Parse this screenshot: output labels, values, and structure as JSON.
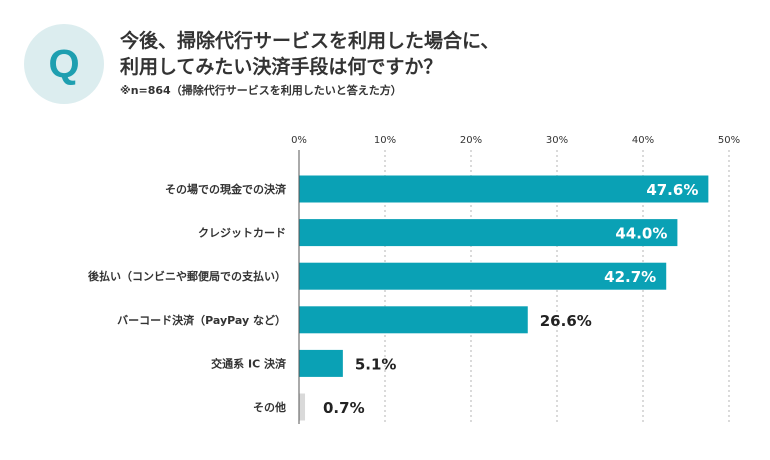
{
  "header": {
    "badge": "Q",
    "title_line1": "今後、掃除代行サービスを利用した場合に、",
    "title_line2": "利用してみたい決済手段は何ですか？",
    "note": "※n=864（掃除代行サービスを利用したいと答えた方）"
  },
  "colors": {
    "bar": "#0aa1b5",
    "bar_other": "#d9d9d9",
    "badge_bg": "#dcedef",
    "badge_text": "#1e9fb0"
  },
  "chart_data": {
    "type": "bar",
    "orientation": "horizontal",
    "categories": [
      "その場での現金での決済",
      "クレジットカード",
      "後払い（コンビニや郵便局での支払い）",
      "バーコード決済（PayPay など）",
      "交通系 IC 決済",
      "その他"
    ],
    "values": [
      47.6,
      44.0,
      42.7,
      26.6,
      5.1,
      0.7
    ],
    "value_labels": [
      "47.6%",
      "44.0%",
      "42.7%",
      "26.6%",
      "5.1%",
      "0.7%"
    ],
    "xlim": [
      0,
      50
    ],
    "ticks": [
      0,
      10,
      20,
      30,
      40,
      50
    ],
    "tick_labels": [
      "0%",
      "10%",
      "20%",
      "30%",
      "40%",
      "50%"
    ],
    "grid": "vertical-dotted",
    "tick_position": "top"
  }
}
